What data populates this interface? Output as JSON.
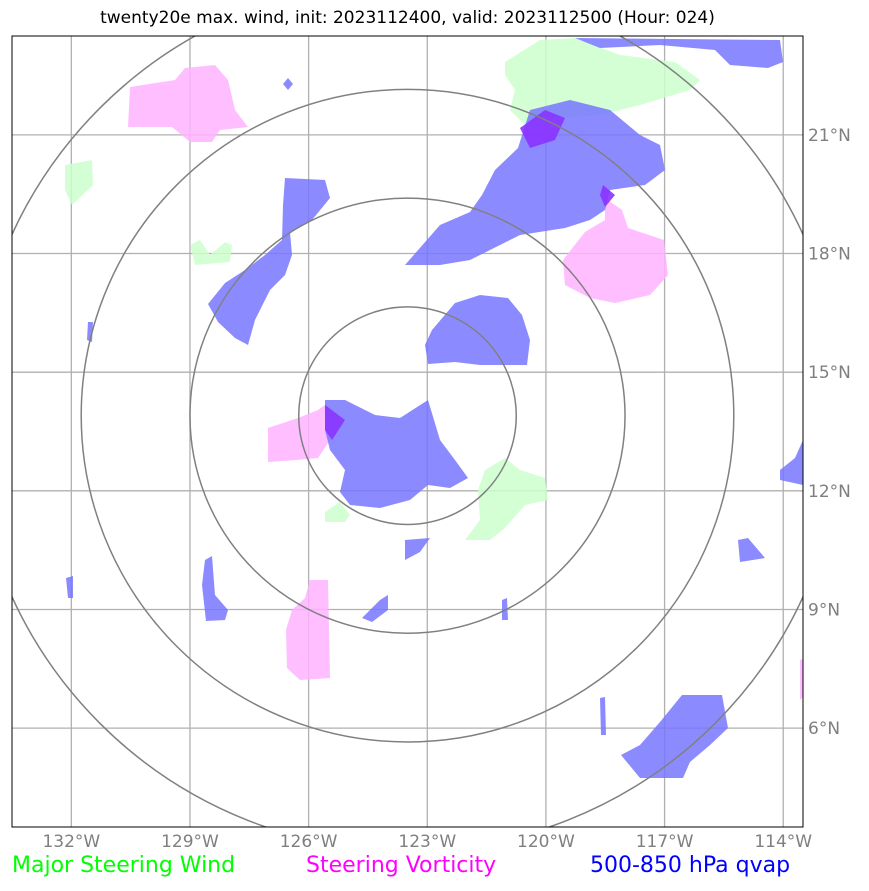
{
  "title": "twenty20e max. wind, init: 2023112400, valid: 2023112500 (Hour: 024)",
  "map": {
    "lon_range": [
      -133.5,
      -113.5
    ],
    "lat_range": [
      3.5,
      23.5
    ],
    "lon_ticks": [
      {
        "value": -132,
        "label": "132°W"
      },
      {
        "value": -129,
        "label": "129°W"
      },
      {
        "value": -126,
        "label": "126°W"
      },
      {
        "value": -123,
        "label": "123°W"
      },
      {
        "value": -120,
        "label": "120°W"
      },
      {
        "value": -117,
        "label": "117°W"
      },
      {
        "value": -114,
        "label": "114°W"
      }
    ],
    "lat_ticks": [
      {
        "value": 6,
        "label": "6°N"
      },
      {
        "value": 9,
        "label": "9°N"
      },
      {
        "value": 12,
        "label": "12°N"
      },
      {
        "value": 15,
        "label": "15°N"
      },
      {
        "value": 18,
        "label": "18°N"
      },
      {
        "value": 21,
        "label": "21°N"
      }
    ],
    "gridlines": true,
    "range_rings": {
      "center": [
        -123.5,
        13.9
      ],
      "radii_deg": [
        2.75,
        5.5,
        8.25,
        11
      ]
    },
    "colors": {
      "wind": "#ccffcc",
      "vorticity": "#ffb3ff",
      "qvap": "#7777ff",
      "overlap": "#8a33ff",
      "rings": "#808080",
      "grid": "#b0b0b0"
    }
  },
  "legend": {
    "wind": "Major Steering Wind",
    "vorticity": "Steering Vorticity",
    "qvap": "500-850 hPa qvap"
  }
}
